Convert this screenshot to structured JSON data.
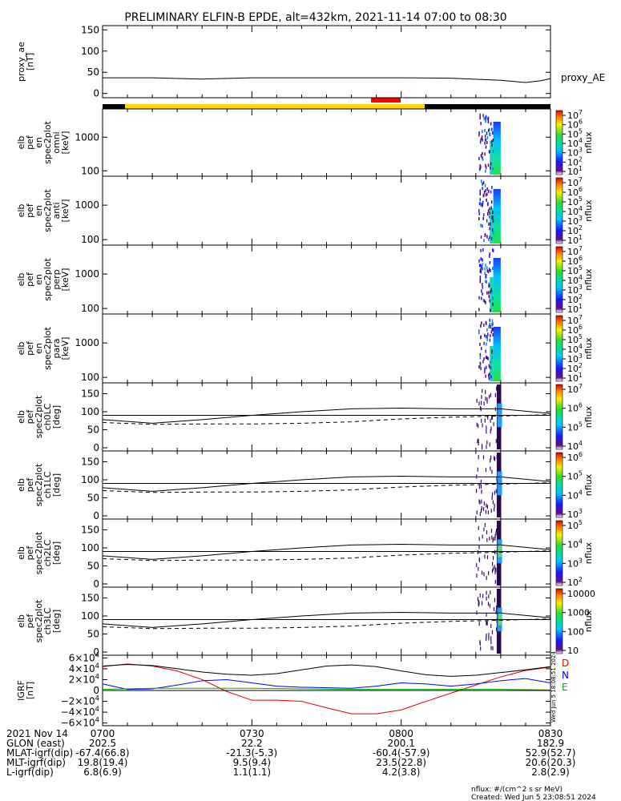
{
  "title": "PRELIMINARY ELFIN-B EPDE, alt=432km, 2021-11-14 07:00 to 08:30",
  "colors": {
    "bar_yellow": "#ffd400",
    "bar_black": "#000000",
    "bar_red": "#ff0000",
    "line_black": "#000000",
    "igrf_D": "#e00000",
    "igrf_N": "#0000ff",
    "igrf_E": "#00b000"
  },
  "chart_data": [
    {
      "id": "proxy_ae",
      "type": "line",
      "ylabel": [
        "proxy_ae",
        "[nT]"
      ],
      "yticks": [
        "150",
        "100",
        "50",
        "0"
      ],
      "ylim": [
        -10,
        160
      ],
      "legend": "proxy_AE",
      "x": [
        0,
        10,
        20,
        30,
        40,
        50,
        60,
        70,
        80,
        85,
        88,
        90
      ],
      "values": [
        37,
        37,
        34,
        37,
        37,
        37,
        37,
        36,
        31,
        26,
        30,
        35
      ]
    },
    {
      "id": "omni",
      "type": "heatmap",
      "ylabel": [
        "elb",
        "pef",
        "en",
        "spec2plot",
        "omni",
        "[keV]"
      ],
      "yticks": [
        "1000",
        "100"
      ],
      "colorbar": {
        "label": "nflux",
        "ticks": [
          "10^7",
          "10^6",
          "10^5",
          "10^4",
          "10^3",
          "10^2",
          "10^1"
        ]
      }
    },
    {
      "id": "anti",
      "type": "heatmap",
      "ylabel": [
        "elb",
        "pef",
        "en",
        "spec2plot",
        "anti",
        "[keV]"
      ],
      "yticks": [
        "1000",
        "100"
      ],
      "colorbar": {
        "label": "nflux",
        "ticks": [
          "10^7",
          "10^6",
          "10^5",
          "10^4",
          "10^3",
          "10^2",
          "10^1"
        ]
      }
    },
    {
      "id": "perp",
      "type": "heatmap",
      "ylabel": [
        "elb",
        "pef",
        "en",
        "spec2plot",
        "perp",
        "[keV]"
      ],
      "yticks": [
        "1000",
        "100"
      ],
      "colorbar": {
        "label": "nflux",
        "ticks": [
          "10^7",
          "10^6",
          "10^5",
          "10^4",
          "10^3",
          "10^2",
          "10^1"
        ]
      }
    },
    {
      "id": "para",
      "type": "heatmap",
      "ylabel": [
        "elb",
        "pef",
        "en",
        "spec2plot",
        "para",
        "[keV]"
      ],
      "yticks": [
        "1000",
        "100"
      ],
      "colorbar": {
        "label": "nflux",
        "ticks": [
          "10^7",
          "10^6",
          "10^5",
          "10^4",
          "10^3",
          "10^2",
          "10^1"
        ]
      }
    },
    {
      "id": "ch0LC",
      "type": "heatmap",
      "ylabel": [
        "elb",
        "pef",
        "spec2plot",
        "ch0LC",
        "[deg]"
      ],
      "yticks": [
        "150",
        "100",
        "50",
        "0"
      ],
      "colorbar": {
        "label": "nflux",
        "ticks": [
          "10^7",
          "10^6",
          "10^5",
          "10^4"
        ]
      }
    },
    {
      "id": "ch1LC",
      "type": "heatmap",
      "ylabel": [
        "elb",
        "pef",
        "spec2plot",
        "ch1LC",
        "[deg]"
      ],
      "yticks": [
        "150",
        "100",
        "50",
        "0"
      ],
      "colorbar": {
        "label": "nflux",
        "ticks": [
          "10^6",
          "10^5",
          "10^4",
          "10^3"
        ]
      }
    },
    {
      "id": "ch2LC",
      "type": "heatmap",
      "ylabel": [
        "elb",
        "pef",
        "spec2plot",
        "ch2LC",
        "[deg]"
      ],
      "yticks": [
        "150",
        "100",
        "50",
        "0"
      ],
      "colorbar": {
        "label": "nflux",
        "ticks": [
          "10^5",
          "10^4",
          "10^3",
          "10^2"
        ]
      }
    },
    {
      "id": "ch3LC",
      "type": "heatmap",
      "ylabel": [
        "elb",
        "pef",
        "spec2plot",
        "ch3LC",
        "[deg]"
      ],
      "yticks": [
        "150",
        "100",
        "50",
        "0"
      ],
      "colorbar": {
        "label": "nflux",
        "ticks": [
          "10000",
          "1000",
          "100",
          "10"
        ]
      }
    },
    {
      "id": "igrf",
      "type": "line",
      "ylabel": [
        "IGRF",
        "[nT]"
      ],
      "yticks": [
        "6×10^4",
        "4×10^4",
        "2×10^4",
        "0",
        "−2×10^4",
        "−4×10^4",
        "−6×10^4"
      ],
      "ylim": [
        -65000,
        65000
      ],
      "series": [
        {
          "name": "D",
          "x": [
            0,
            5,
            10,
            15,
            20,
            25,
            30,
            35,
            40,
            45,
            50,
            55,
            60,
            65,
            70,
            75,
            80,
            85,
            90
          ],
          "values": [
            44000,
            49000,
            45000,
            36000,
            20000,
            -2000,
            -18000,
            -18000,
            -20000,
            -32000,
            -43000,
            -43000,
            -36000,
            -20000,
            -5000,
            10000,
            25000,
            37000,
            43000
          ]
        },
        {
          "name": "N",
          "x": [
            0,
            5,
            10,
            15,
            20,
            25,
            30,
            35,
            40,
            45,
            50,
            55,
            60,
            65,
            70,
            75,
            80,
            85,
            90
          ],
          "values": [
            12000,
            2000,
            3000,
            10000,
            18000,
            20000,
            14000,
            8000,
            6000,
            5000,
            4000,
            8000,
            14000,
            12000,
            8000,
            12000,
            18000,
            22000,
            14000
          ]
        },
        {
          "name": "E",
          "x": [
            0,
            10,
            20,
            30,
            40,
            50,
            60,
            70,
            80,
            90
          ],
          "values": [
            2000,
            4000,
            4000,
            4000,
            3000,
            2000,
            2000,
            2000,
            2000,
            1000
          ]
        },
        {
          "name": "",
          "x": [
            0,
            5,
            10,
            15,
            20,
            25,
            30,
            35,
            40,
            45,
            50,
            55,
            60,
            65,
            70,
            75,
            80,
            85,
            90
          ],
          "values": [
            45000,
            48000,
            46000,
            40000,
            34000,
            30000,
            28000,
            31000,
            38000,
            45000,
            47000,
            44000,
            36000,
            29000,
            26000,
            28000,
            33000,
            38000,
            44000
          ]
        }
      ],
      "legend": [
        "D",
        "N",
        "E"
      ],
      "stamp": "Wed Jun 5 18:08:51 2024"
    }
  ],
  "red_bar_label": "",
  "dashed_series": {
    "x": [
      0,
      10,
      20,
      30,
      40,
      50,
      60,
      70,
      80,
      90
    ],
    "solid": [
      78,
      68,
      78,
      90,
      100,
      108,
      110,
      108,
      108,
      95
    ],
    "dashed": [
      70,
      65,
      66,
      66,
      68,
      72,
      80,
      85,
      88,
      92
    ]
  },
  "footer": {
    "rows": [
      {
        "label": "2021 Nov 14",
        "cols": [
          "0700",
          "0730",
          "0800",
          "0830"
        ]
      },
      {
        "label": "GLON (east)",
        "cols": [
          "202.5",
          "22.2",
          "200.1",
          "182.9"
        ]
      },
      {
        "label": "MLAT-igrf(dip)",
        "cols": [
          "-67.4(66.8)",
          "-21.3(-5.3)",
          "-60.4(-57.9)",
          "52.9(52.7)"
        ]
      },
      {
        "label": "MLT-igrf(dip)",
        "cols": [
          "19.8(19.4)",
          "9.5(9.4)",
          "23.5(22.8)",
          "20.6(20.3)"
        ]
      },
      {
        "label": "L-igrf(dip)",
        "cols": [
          "6.8(6.9)",
          "1.1(1.1)",
          "4.2(3.8)",
          "2.8(2.9)"
        ]
      }
    ],
    "nflux_note": "nflux: #/(cm^2 s sr MeV)",
    "created": "Created: Wed Jun  5 23:08:51 2024"
  }
}
